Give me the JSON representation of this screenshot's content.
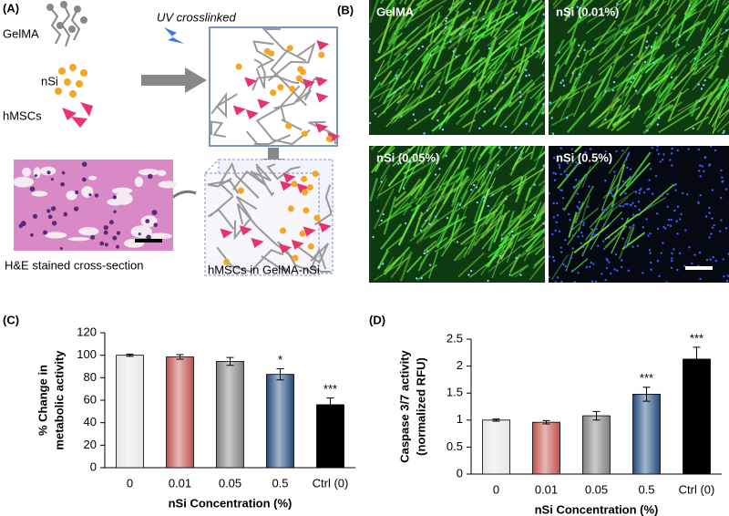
{
  "panel_a": {
    "label": "(A)",
    "gelma": "GelMA",
    "nsi": "nSi",
    "hmscs": "hMSCs",
    "uv": "UV crosslinked",
    "he": "H&E stained cross-section",
    "hydrogel": "hMSCs in GelMA-nSi"
  },
  "panel_b": {
    "label": "(B)",
    "images": [
      "GelMA",
      "nSi (0.01%)",
      "nSi (0.05%)",
      "nSi (0.5%)"
    ]
  },
  "chart_data": [
    {
      "type": "bar",
      "panel_label": "(C)",
      "categories": [
        "0",
        "0.01",
        "0.05",
        "0.5",
        "Ctrl (0)"
      ],
      "values": [
        100,
        98.5,
        94.5,
        83,
        56
      ],
      "errors": [
        1,
        2,
        3.5,
        5,
        6
      ],
      "significance": [
        null,
        null,
        null,
        "*",
        "***"
      ],
      "colors": [
        "#e6e6e6",
        "#c0504d",
        "#7f7f7f",
        "#1f497d",
        "#000000"
      ],
      "ylim": [
        0,
        120
      ],
      "yticks": [
        0,
        20,
        40,
        60,
        80,
        100,
        120
      ],
      "y_label": [
        "% Change in",
        "metabolic activity"
      ],
      "x_label": "nSi Concentration (%)",
      "grid": false
    },
    {
      "type": "bar",
      "panel_label": "(D)",
      "categories": [
        "0",
        "0.01",
        "0.05",
        "0.5",
        "Ctrl (0)"
      ],
      "values": [
        1,
        0.96,
        1.08,
        1.48,
        2.13
      ],
      "errors": [
        0.02,
        0.03,
        0.08,
        0.13,
        0.22
      ],
      "significance": [
        null,
        null,
        null,
        "***",
        "***"
      ],
      "colors": [
        "#e6e6e6",
        "#c0504d",
        "#7f7f7f",
        "#1f497d",
        "#000000"
      ],
      "ylim": [
        0,
        2.5
      ],
      "yticks": [
        0,
        0.5,
        1,
        1.5,
        2,
        2.5
      ],
      "y_label": [
        "Caspase 3/7 activity",
        "(normalized RFU)"
      ],
      "x_label": "nSi Concentration (%)",
      "grid": false
    }
  ]
}
